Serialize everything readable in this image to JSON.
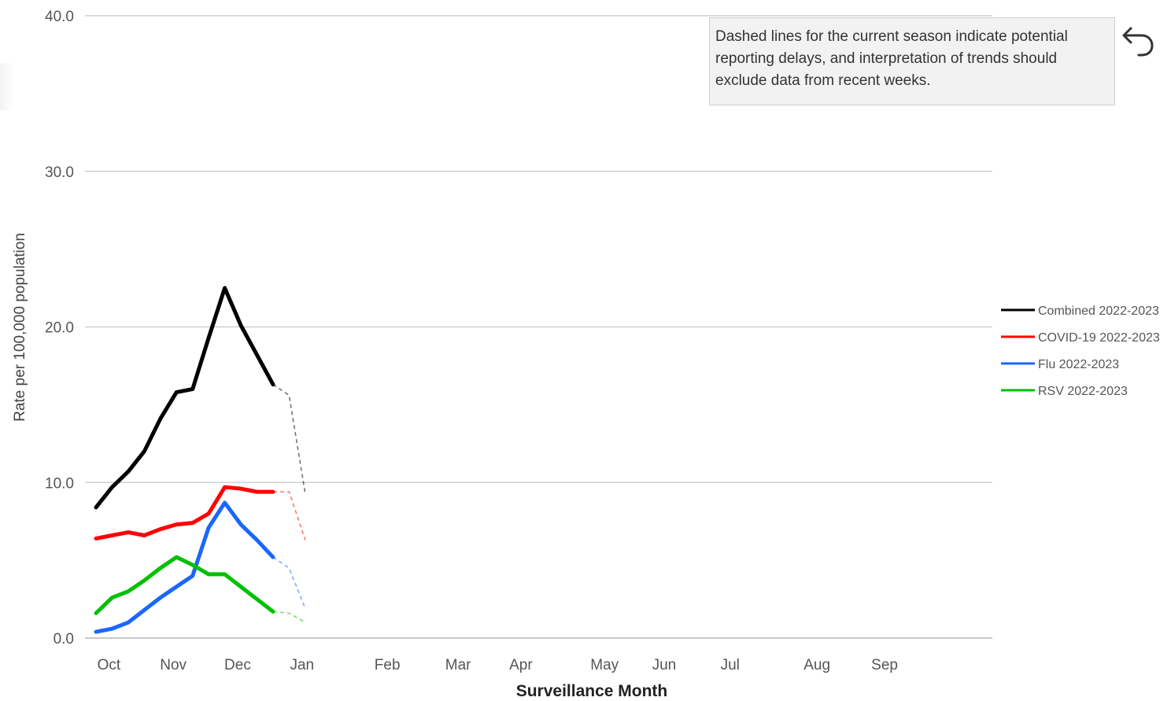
{
  "note": {
    "text": "Dashed lines for the current season indicate potential reporting delays, and interpretation of trends should exclude data from recent weeks."
  },
  "back_button": {
    "icon": "undo-arrow-icon"
  },
  "chart_data": {
    "type": "line",
    "xlabel": "Surveillance Month",
    "ylabel": "Rate per 100,000 population",
    "ylim": [
      0,
      40
    ],
    "y_ticks": [
      0,
      10,
      20,
      30,
      40
    ],
    "y_tick_labels": [
      "0.0",
      "10.0",
      "20.0",
      "30.0",
      "40.0"
    ],
    "x_range_weeks": [
      0,
      53.5
    ],
    "month_ticks": [
      {
        "label": "Oct",
        "week": 0.8
      },
      {
        "label": "Nov",
        "week": 4.8
      },
      {
        "label": "Dec",
        "week": 8.8
      },
      {
        "label": "Jan",
        "week": 12.8
      },
      {
        "label": "Feb",
        "week": 18.1
      },
      {
        "label": "Mar",
        "week": 22.5
      },
      {
        "label": "Apr",
        "week": 26.4
      },
      {
        "label": "May",
        "week": 31.6
      },
      {
        "label": "Jun",
        "week": 35.3
      },
      {
        "label": "Jul",
        "week": 39.4
      },
      {
        "label": "Aug",
        "week": 44.8
      },
      {
        "label": "Sep",
        "week": 49.0
      }
    ],
    "grid": true,
    "legend_position": "right",
    "x": [
      0,
      1,
      2,
      3,
      4,
      5,
      6,
      7,
      8,
      9,
      10,
      11,
      12,
      13
    ],
    "series": [
      {
        "name": "Combined 2022-2023",
        "color": "#000000",
        "values": [
          8.4,
          9.7,
          10.7,
          12.0,
          14.1,
          15.8,
          16.0,
          19.3,
          22.5,
          20.1,
          18.2,
          16.3,
          15.6,
          9.3
        ],
        "solid_until_index": 11
      },
      {
        "name": "COVID-19 2022-2023",
        "color": "#ff0000",
        "values": [
          6.4,
          6.6,
          6.8,
          6.6,
          7.0,
          7.3,
          7.4,
          8.0,
          9.7,
          9.6,
          9.4,
          9.4,
          9.4,
          6.3
        ],
        "solid_until_index": 11
      },
      {
        "name": "Flu 2022-2023",
        "color": "#1a66ff",
        "values": [
          0.4,
          0.6,
          1.0,
          1.8,
          2.6,
          3.3,
          4.0,
          7.1,
          8.7,
          7.3,
          6.3,
          5.2,
          4.5,
          1.9
        ],
        "solid_until_index": 11
      },
      {
        "name": "RSV 2022-2023",
        "color": "#00c000",
        "values": [
          1.6,
          2.6,
          3.0,
          3.7,
          4.5,
          5.2,
          4.7,
          4.1,
          4.1,
          3.3,
          2.5,
          1.7,
          1.6,
          1.0
        ],
        "solid_until_index": 11
      }
    ]
  }
}
